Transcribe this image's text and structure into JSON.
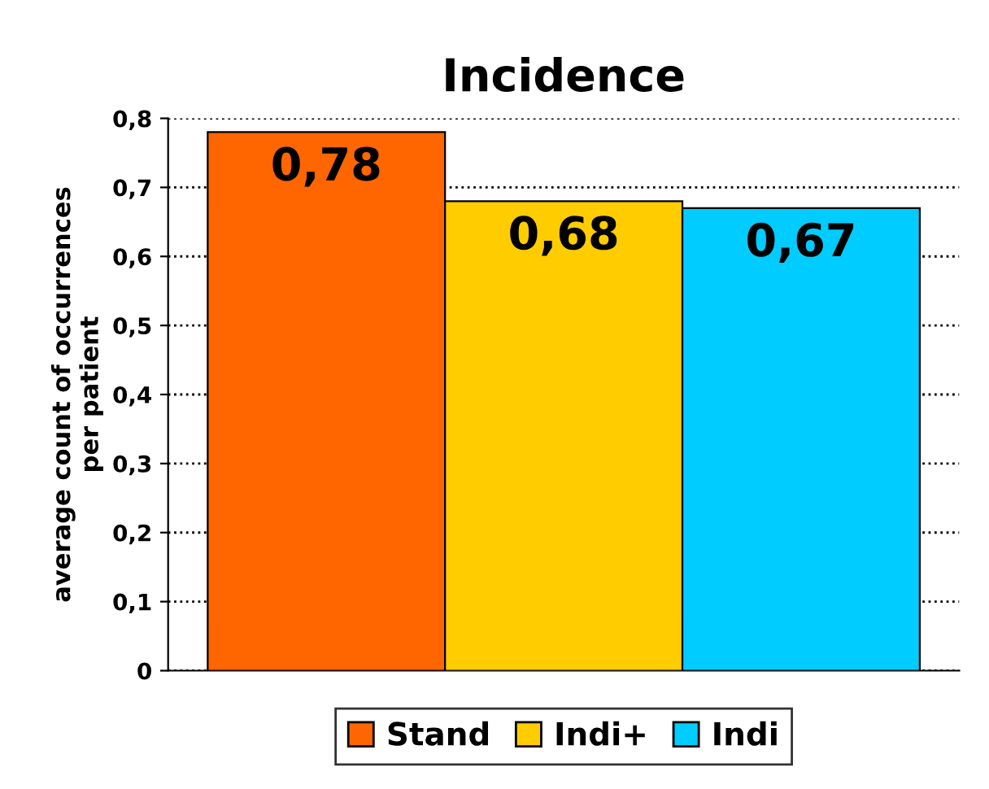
{
  "chart_data": {
    "type": "bar",
    "title": "Incidence",
    "ylabel": "average count of occurrences\nper patient",
    "categories": [
      null
    ],
    "series": [
      {
        "name": "Stand",
        "color": "#ff6600",
        "values": [
          0.78
        ],
        "value_labels": [
          "0,78"
        ]
      },
      {
        "name": "Indi+",
        "color": "#ffcc00",
        "values": [
          0.68
        ],
        "value_labels": [
          "0,68"
        ]
      },
      {
        "name": "Indi",
        "color": "#00ccff",
        "values": [
          0.67
        ],
        "value_labels": [
          "0,67"
        ]
      }
    ],
    "ylim": [
      0,
      0.8
    ],
    "yticks": [
      0,
      {
        "value": 0.1,
        "label": "0,1"
      },
      {
        "value": 0.2,
        "label": "0,2"
      },
      {
        "value": 0.3,
        "label": "0,3"
      },
      {
        "value": 0.4,
        "label": "0,4"
      },
      {
        "value": 0.5,
        "label": "0,5"
      },
      {
        "value": 0.6,
        "label": "0,6"
      },
      {
        "value": 0.7,
        "label": "0,7"
      },
      {
        "value": 0.8,
        "label": "0,8"
      }
    ],
    "grid": "y",
    "legend": "bottom"
  }
}
